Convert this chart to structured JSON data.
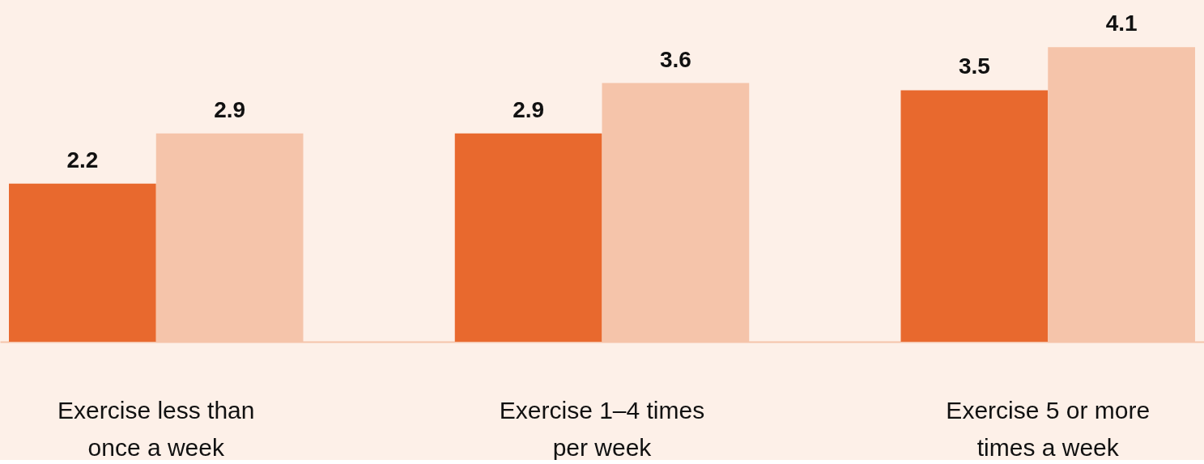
{
  "chart_data": {
    "type": "bar",
    "categories": [
      "Exercise less than once a week",
      "Exercise 1–4 times per week",
      "Exercise 5 or more times a week"
    ],
    "series": [
      {
        "color": "#e8692e",
        "values": [
          2.2,
          2.9,
          3.5
        ]
      },
      {
        "color": "#f5c4aa",
        "values": [
          2.9,
          3.6,
          4.1
        ]
      }
    ],
    "data_labels": true,
    "grid": false,
    "legend": false,
    "tick_labels": "x"
  }
}
